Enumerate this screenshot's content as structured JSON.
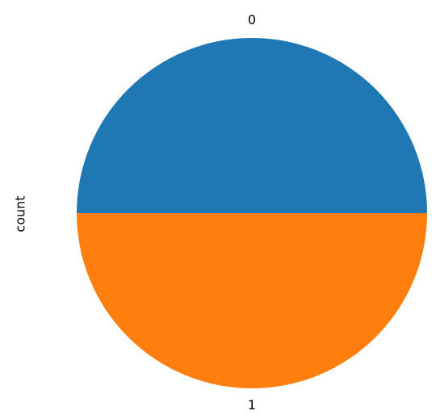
{
  "chart_data": {
    "type": "pie",
    "ylabel": "count",
    "categories": [
      "0",
      "1"
    ],
    "values": [
      50,
      50
    ],
    "colors": [
      "#1f77b4",
      "#ff7f0e"
    ],
    "start_angle_deg": 0,
    "direction": "counterclockwise"
  }
}
